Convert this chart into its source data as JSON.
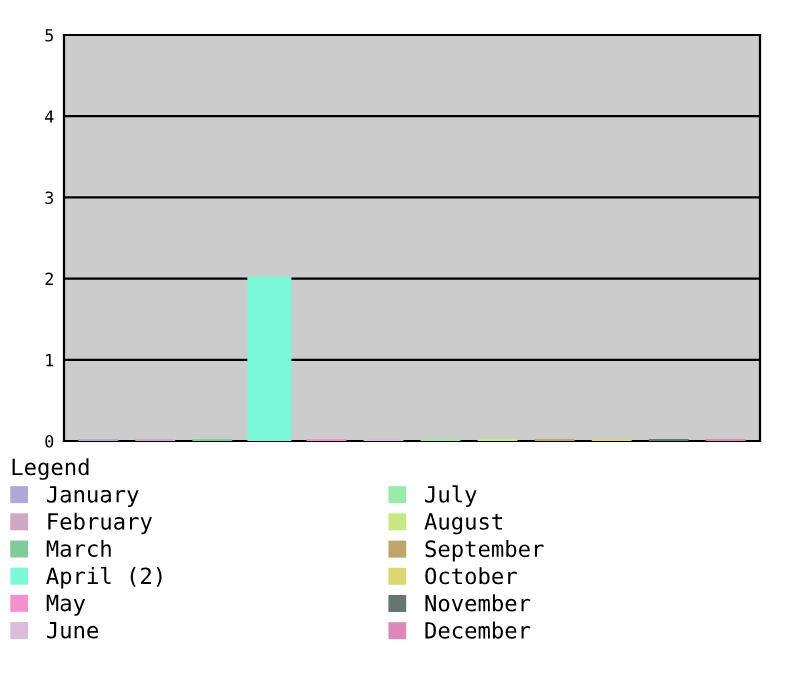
{
  "chart_data": {
    "type": "bar",
    "categories": [
      null,
      null,
      null,
      null,
      null,
      null,
      null,
      null,
      null,
      null,
      null,
      null
    ],
    "series": [
      {
        "name": "January",
        "color": "#afa8da",
        "values": [
          0,
          null,
          null,
          null,
          null,
          null,
          null,
          null,
          null,
          null,
          null,
          null
        ]
      },
      {
        "name": "February",
        "color": "#cfa8c4",
        "values": [
          null,
          0,
          null,
          null,
          null,
          null,
          null,
          null,
          null,
          null,
          null,
          null
        ]
      },
      {
        "name": "March",
        "color": "#80cc98",
        "values": [
          null,
          null,
          0,
          null,
          null,
          null,
          null,
          null,
          null,
          null,
          null,
          null
        ]
      },
      {
        "name": "April (2)",
        "color": "#7af8d8",
        "values": [
          null,
          null,
          null,
          2,
          null,
          null,
          null,
          null,
          null,
          null,
          null,
          null
        ]
      },
      {
        "name": "May",
        "color": "#f490d0",
        "values": [
          null,
          null,
          null,
          null,
          0,
          null,
          null,
          null,
          null,
          null,
          null,
          null
        ]
      },
      {
        "name": "June",
        "color": "#dcbcdc",
        "values": [
          null,
          null,
          null,
          null,
          null,
          0,
          null,
          null,
          null,
          null,
          null,
          null
        ]
      },
      {
        "name": "July",
        "color": "#98eca8",
        "values": [
          null,
          null,
          null,
          null,
          null,
          null,
          0,
          null,
          null,
          null,
          null,
          null
        ]
      },
      {
        "name": "August",
        "color": "#c8e880",
        "values": [
          null,
          null,
          null,
          null,
          null,
          null,
          null,
          0,
          null,
          null,
          null,
          null
        ]
      },
      {
        "name": "September",
        "color": "#c0a468",
        "values": [
          null,
          null,
          null,
          null,
          null,
          null,
          null,
          null,
          0,
          null,
          null,
          null
        ]
      },
      {
        "name": "October",
        "color": "#dcd870",
        "values": [
          null,
          null,
          null,
          null,
          null,
          null,
          null,
          null,
          null,
          0,
          null,
          null
        ]
      },
      {
        "name": "November",
        "color": "#687470",
        "values": [
          null,
          null,
          null,
          null,
          null,
          null,
          null,
          null,
          null,
          null,
          0,
          null
        ]
      },
      {
        "name": "December",
        "color": "#dc88bc",
        "values": [
          null,
          null,
          null,
          null,
          null,
          null,
          null,
          null,
          null,
          null,
          null,
          0
        ]
      }
    ],
    "ylim": [
      0,
      5
    ],
    "yticks": [
      0,
      1,
      2,
      3,
      4,
      5
    ],
    "grid": "y",
    "tick_labels": "y",
    "legend": "bottom",
    "legend_title": "Legend"
  }
}
